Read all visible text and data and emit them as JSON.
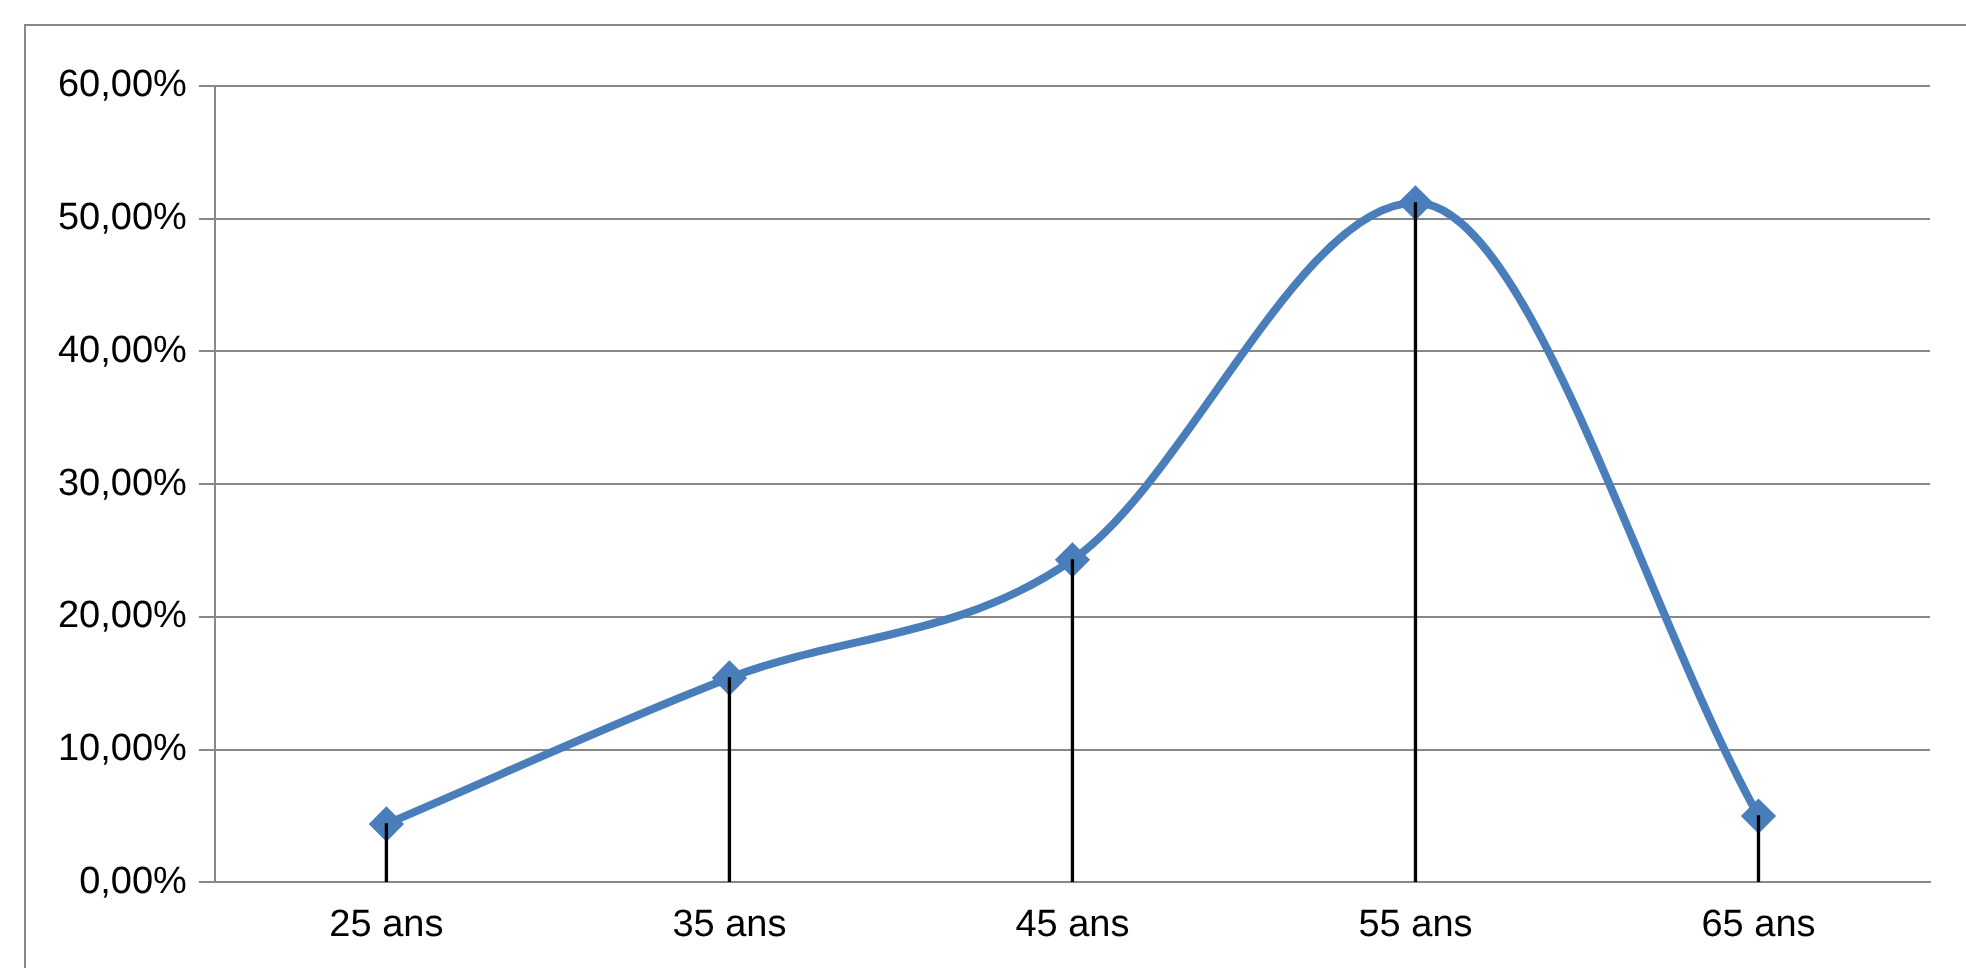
{
  "chart_data": {
    "type": "line",
    "categories": [
      "25 ans",
      "35 ans",
      "45 ans",
      "55 ans",
      "65 ans"
    ],
    "series": [
      {
        "color": "#4a7ebb",
        "values": [
          4.4,
          15.4,
          24.3,
          51.2,
          5.0
        ]
      },
      {
        "type": "bar",
        "color": "#000000",
        "values": [
          4.4,
          15.4,
          24.3,
          51.2,
          5.0
        ]
      }
    ],
    "ylim": [
      0,
      60
    ],
    "yticks": [
      {
        "value": 0,
        "label": "0,00%"
      },
      {
        "value": 10,
        "label": "10,00%"
      },
      {
        "value": 20,
        "label": "20,00%"
      },
      {
        "value": 30,
        "label": "30,00%"
      },
      {
        "value": 40,
        "label": "40,00%"
      },
      {
        "value": 50,
        "label": "50,00%"
      },
      {
        "value": 60,
        "label": "60,00%"
      }
    ],
    "grid": "y",
    "marker": "diamond",
    "line_style": "solid",
    "legend": false
  }
}
